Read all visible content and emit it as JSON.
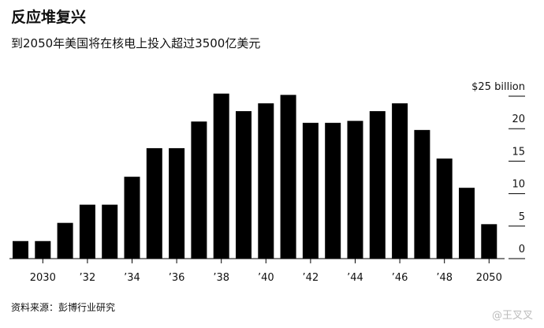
{
  "chart_data": {
    "type": "bar",
    "title": "反应堆复兴",
    "subtitle": "到2050年美国将在核电上投入超过3500亿美元",
    "source": "资料来源：彭博行业研究",
    "watermark": "@王叉叉",
    "categories": [
      null,
      "2030",
      null,
      "’32",
      null,
      "’34",
      null,
      "’36",
      null,
      "’38",
      null,
      "’40",
      null,
      "’42",
      null,
      "’44",
      null,
      "’46",
      null,
      "’48",
      null,
      "2050"
    ],
    "values": [
      2.7,
      2.7,
      5.5,
      8.3,
      8.3,
      12.6,
      17,
      17,
      21.1,
      25.4,
      22.7,
      23.9,
      25.2,
      20.9,
      20.9,
      21.2,
      22.7,
      23.9,
      19.8,
      15.4,
      10.9,
      5.3
    ],
    "color": "#000000",
    "ylim": [
      0,
      25
    ],
    "yticks": [
      0,
      5,
      10,
      15,
      20,
      {
        "value": 25,
        "label": "$25 billion"
      }
    ]
  }
}
